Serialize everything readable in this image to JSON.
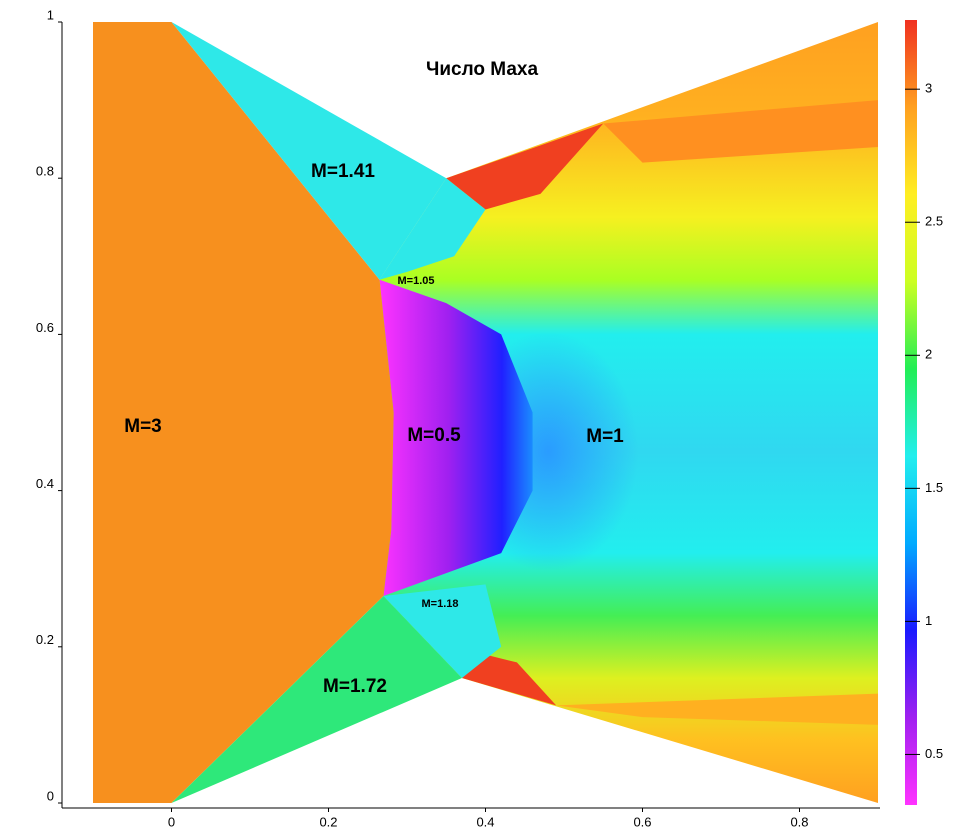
{
  "chart_data": {
    "type": "contour",
    "title": "Число Маха",
    "xlim": [
      -0.1,
      0.9
    ],
    "ylim": [
      0,
      1
    ],
    "xticks": [
      0,
      0.2,
      0.4,
      0.6,
      0.8
    ],
    "yticks": [
      0,
      0.2,
      0.4,
      0.6,
      0.8,
      1
    ],
    "colorbar": {
      "clim": [
        0.31,
        3.26
      ],
      "ticks": [
        0.5,
        1,
        1.5,
        2,
        2.5,
        3
      ],
      "colors": [
        "#ff33ff",
        "#a020f0",
        "#1a1aff",
        "#00aaff",
        "#22eeee",
        "#22ee55",
        "#ccff22",
        "#ffee22",
        "#ffa020",
        "#f03020"
      ]
    },
    "annotations": [
      "M=1.41",
      "M=1.05",
      "M=3",
      "M=0.5",
      "M=1",
      "M=1.18",
      "M=1.72"
    ]
  }
}
